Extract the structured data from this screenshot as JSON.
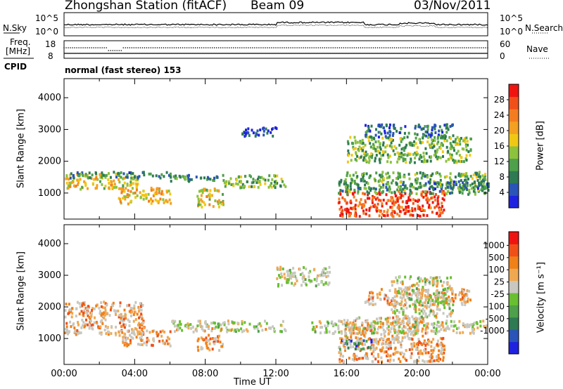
{
  "header": {
    "station": "Zhongshan Station (fitACF)",
    "beam": "Beam 09",
    "date": "03/Nov/2011"
  },
  "noise_panel": {
    "left_label": "N.Sky",
    "right_label": "N.Search",
    "left_ticks": [
      "10^5",
      "10^0"
    ],
    "right_ticks": [
      "10^5",
      "10^0"
    ]
  },
  "freq_panel": {
    "left_label_line1": "Freq.",
    "left_label_line2": "[MHz]",
    "right_label": "Nave",
    "left_ticks": [
      "18",
      "8"
    ],
    "right_ticks": [
      "60",
      "0"
    ]
  },
  "cpid": {
    "label": "CPID",
    "value": "normal (fast stereo) 153"
  },
  "colors": {
    "power_scale": [
      "#1e22e0",
      "#2a54b8",
      "#2e7a52",
      "#4ea04a",
      "#8cc23c",
      "#f0c814",
      "#f4a020",
      "#f47c20",
      "#f05018",
      "#f01410"
    ],
    "velocity_scale": [
      "#1e22e0",
      "#2a54b8",
      "#2e7a52",
      "#4ea04a",
      "#68c030",
      "#c8c8c0",
      "#f0a850",
      "#f08018",
      "#f05018",
      "#f01410"
    ],
    "scatter_gray": "#c8c8c0"
  },
  "chart_data": [
    {
      "type": "heatmap",
      "panel": "power",
      "title": "",
      "xlabel": "Time UT",
      "ylabel": "Slant Range [km]",
      "x_ticks": [
        "00:00",
        "04:00",
        "08:00",
        "12:00",
        "16:00",
        "20:00",
        "00:00"
      ],
      "xlim_hours": [
        0,
        24
      ],
      "ylim_km": [
        180,
        4600
      ],
      "y_ticks": [
        1000,
        2000,
        3000,
        4000
      ],
      "colorbar": {
        "label": "Power [dB]",
        "range": [
          0,
          32
        ],
        "ticks": [
          4,
          8,
          12,
          16,
          20,
          24,
          28
        ]
      },
      "regions": [
        {
          "t0": 0.0,
          "t1": 4.2,
          "r0": 1150,
          "r1": 1650,
          "level": 0.55
        },
        {
          "t0": 0.3,
          "t1": 6.5,
          "r0": 1500,
          "r1": 1700,
          "level": 0.25
        },
        {
          "t0": 3.0,
          "t1": 6.0,
          "r0": 700,
          "r1": 1200,
          "level": 0.6
        },
        {
          "t0": 6.0,
          "t1": 9.0,
          "r0": 1400,
          "r1": 1600,
          "level": 0.3
        },
        {
          "t0": 7.5,
          "t1": 9.0,
          "r0": 600,
          "r1": 1200,
          "level": 0.55
        },
        {
          "t0": 9.0,
          "t1": 12.5,
          "r0": 1200,
          "r1": 1600,
          "level": 0.4
        },
        {
          "t0": 10.0,
          "t1": 12.0,
          "r0": 2800,
          "r1": 3100,
          "level": 0.15
        },
        {
          "t0": 15.5,
          "t1": 21.5,
          "r0": 300,
          "r1": 1100,
          "level": 0.85
        },
        {
          "t0": 15.5,
          "t1": 24.0,
          "r0": 1000,
          "r1": 1700,
          "level": 0.35
        },
        {
          "t0": 16.0,
          "t1": 23.0,
          "r0": 2000,
          "r1": 2800,
          "level": 0.4
        },
        {
          "t0": 19.0,
          "t1": 24.0,
          "r0": 1150,
          "r1": 1400,
          "level": 0.25
        },
        {
          "t0": 17.0,
          "t1": 22.0,
          "r0": 2800,
          "r1": 3200,
          "level": 0.2
        }
      ]
    },
    {
      "type": "heatmap",
      "panel": "velocity",
      "title": "",
      "xlabel": "Time UT",
      "ylabel": "Slant Range [km]",
      "x_ticks": [
        "00:00",
        "04:00",
        "08:00",
        "12:00",
        "16:00",
        "20:00",
        "00:00"
      ],
      "xlim_hours": [
        0,
        24
      ],
      "ylim_km": [
        180,
        4600
      ],
      "y_ticks": [
        1000,
        2000,
        3000,
        4000
      ],
      "colorbar": {
        "label": "Velocity [m s⁻¹]",
        "tick_labels": [
          "1000",
          "500",
          "100",
          "25",
          "-25",
          "-100",
          "-500",
          "-1000"
        ]
      },
      "regions": [
        {
          "t0": 0.0,
          "t1": 4.5,
          "r0": 1150,
          "r1": 2200,
          "level": 0.7
        },
        {
          "t0": 3.0,
          "t1": 6.0,
          "r0": 800,
          "r1": 1300,
          "level": 0.72
        },
        {
          "t0": 6.0,
          "t1": 12.5,
          "r0": 1250,
          "r1": 1600,
          "level": 0.55
        },
        {
          "t0": 7.5,
          "t1": 9.0,
          "r0": 650,
          "r1": 1150,
          "level": 0.7
        },
        {
          "t0": 15.5,
          "t1": 21.5,
          "r0": 300,
          "r1": 1050,
          "level": 0.72
        },
        {
          "t0": 15.8,
          "t1": 20.5,
          "r0": 1000,
          "r1": 1700,
          "level": 0.66
        },
        {
          "t0": 14.0,
          "t1": 24.0,
          "r0": 1200,
          "r1": 1600,
          "level": 0.55
        },
        {
          "t0": 17.0,
          "t1": 23.0,
          "r0": 2100,
          "r1": 2600,
          "level": 0.7
        },
        {
          "t0": 18.5,
          "t1": 22.0,
          "r0": 1700,
          "r1": 3000,
          "level": 0.55
        },
        {
          "t0": 12.0,
          "t1": 15.0,
          "r0": 2700,
          "r1": 3300,
          "level": 0.55
        },
        {
          "t0": 15.5,
          "t1": 17.5,
          "r0": 700,
          "r1": 1000,
          "level": 0.2
        }
      ]
    }
  ]
}
